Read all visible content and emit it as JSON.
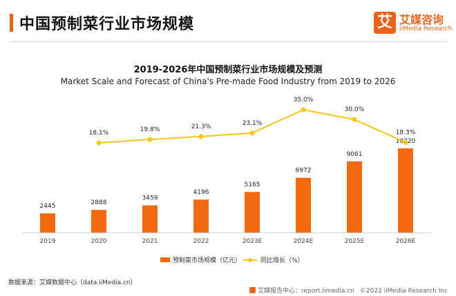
{
  "page": {
    "title": "中国预制菜行业市场规模"
  },
  "logo": {
    "mark": "艾",
    "name_cn": "艾媒咨询",
    "name_en": "iiMedia Research"
  },
  "chart_data": {
    "type": "bar",
    "title": "2019-2026年中国预制菜行业市场规模及预测",
    "subtitle": "Market Scale and Forecast of China's Pre-made Food Industry from 2019 to 2026",
    "categories": [
      "2019",
      "2020",
      "2021",
      "2022",
      "2023E",
      "2024E",
      "2025E",
      "2026E"
    ],
    "series": [
      {
        "name": "预制菜市场规模（亿元）",
        "type": "bar",
        "values": [
          2445,
          2888,
          3459,
          4196,
          5165,
          6972,
          9061,
          10720
        ],
        "labels": [
          "2445",
          "2888",
          "3459",
          "4196",
          "5165",
          "6972",
          "9061",
          "10720"
        ],
        "color": "#f26a10"
      },
      {
        "name": "同比增长（%）",
        "type": "line",
        "values": [
          null,
          18.1,
          19.8,
          21.3,
          23.1,
          35.0,
          30.0,
          18.3
        ],
        "labels": [
          "",
          "18.1%",
          "19.8%",
          "21.3%",
          "23.1%",
          "35.0%",
          "30.0%",
          "18.3%"
        ],
        "color": "#f5c518"
      }
    ],
    "legend_position": "bottom",
    "grid": false
  },
  "source": "数据来源：艾媒数据中心（data.iiMedia.cn）",
  "footer": {
    "report": "艾媒报告中心：report.iimedia.cn",
    "copyright": "©2022  iiMedia Research  Inc"
  }
}
